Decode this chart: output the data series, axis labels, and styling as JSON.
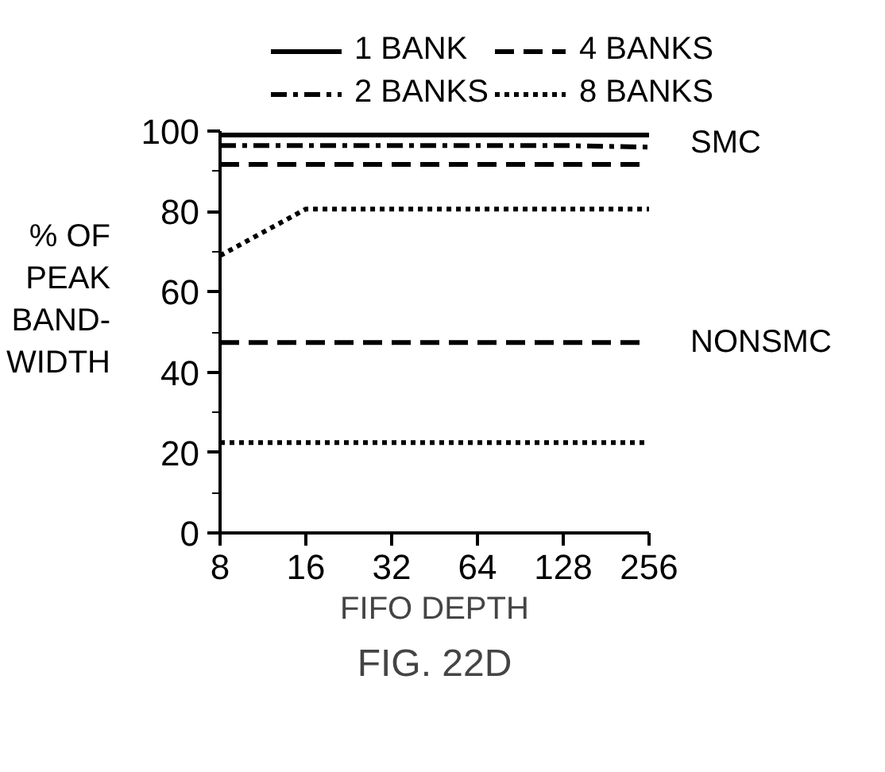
{
  "chart_data": {
    "type": "line",
    "title": "FIG. 22D",
    "xlabel": "FIFO DEPTH",
    "ylabel": "% OF PEAK BAND- WIDTH",
    "categories": [
      "8",
      "16",
      "32",
      "64",
      "128",
      "256"
    ],
    "series": [
      {
        "name": "1 BANK",
        "color": "#000000",
        "line_style": "solid",
        "values": [
          99,
          99,
          99,
          99,
          99,
          99
        ]
      },
      {
        "name": "2 BANKS",
        "color": "#000000",
        "line_style": "dashdot",
        "values": [
          96.4,
          96.4,
          96.4,
          96.4,
          96.4,
          96
        ]
      },
      {
        "name": "4 BANKS",
        "color": "#000000",
        "line_style": "dashed",
        "values": [
          91.7,
          91.7,
          91.7,
          91.7,
          91.7,
          91.7
        ]
      },
      {
        "name": "8 BANKS",
        "color": "#000000",
        "line_style": "dotted",
        "values": [
          69,
          80.6,
          80.6,
          80.6,
          80.6,
          80.6
        ]
      },
      {
        "color": "#000000",
        "line_style": "dashed",
        "values": [
          47.4,
          47.4,
          47.4,
          47.4,
          47.4,
          47.4
        ]
      },
      {
        "color": "#000000",
        "line_style": "dotted",
        "values": [
          22.5,
          22.5,
          22.5,
          22.5,
          22.5,
          22.5
        ]
      }
    ],
    "annotations": [
      {
        "text": "SMC",
        "x": "256",
        "y": 97
      },
      {
        "text": "NONSMC",
        "x": "256",
        "y": 47.4
      }
    ],
    "ylim": [
      0,
      100
    ],
    "yticks": [
      0,
      20,
      40,
      60,
      80,
      100
    ],
    "legend": "top",
    "marker": "none",
    "grid": false
  }
}
